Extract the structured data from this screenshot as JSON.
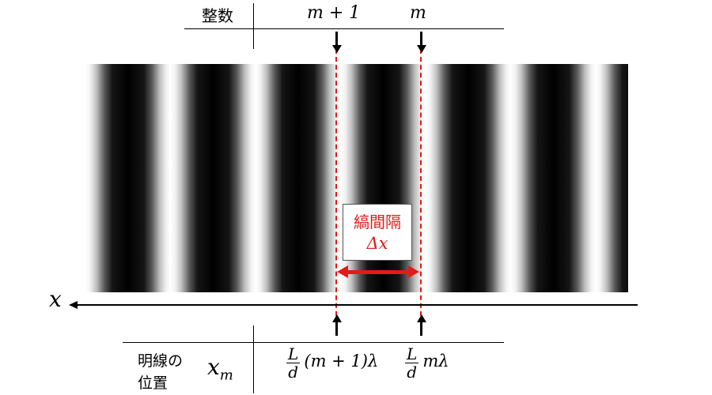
{
  "top_table": {
    "row_label": "整数",
    "order_left": "m + 1",
    "order_right": "m"
  },
  "axis": {
    "label": "x"
  },
  "spacing": {
    "label": "縞間隔",
    "symbol": "Δx"
  },
  "bottom_table": {
    "row_label_line1": "明線の",
    "row_label_line2": "位置",
    "symbol_base": "x",
    "symbol_sub": "m",
    "pos_left": {
      "numerator": "L",
      "denominator": "d",
      "tail": "(m + 1)λ"
    },
    "pos_right": {
      "numerator": "L",
      "denominator": "d",
      "tail": "mλ"
    }
  },
  "colors": {
    "accent_red": "#e21a1a",
    "line": "#000000"
  }
}
